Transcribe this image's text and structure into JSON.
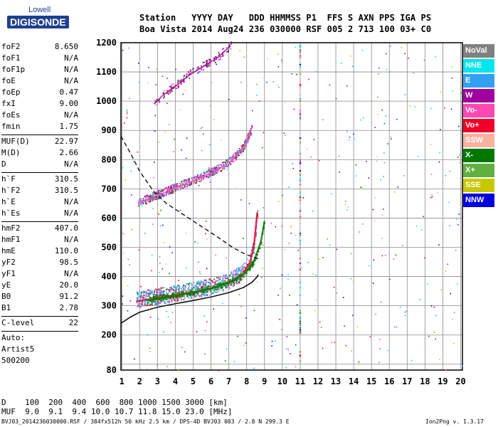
{
  "logo": {
    "line1": "Lowell",
    "line2": "DIGISONDE"
  },
  "header": {
    "line1": "Station   YYYY DAY   DDD HHMMSS P1  FFS S AXN PPS IGA PS",
    "line2": "Boa Vista 2014 Aug24 236 030000 RSF 005 2 713 100 03+ C0"
  },
  "params": {
    "group1": [
      {
        "name": "foF2",
        "value": "8.650"
      },
      {
        "name": "foF1",
        "value": "N/A"
      },
      {
        "name": "foF1p",
        "value": "N/A"
      },
      {
        "name": "foE",
        "value": "N/A"
      },
      {
        "name": "foEp",
        "value": "0.47"
      },
      {
        "name": "fxI",
        "value": "9.00"
      },
      {
        "name": "foEs",
        "value": "N/A"
      },
      {
        "name": "fmin",
        "value": "1.75"
      }
    ],
    "group2": [
      {
        "name": "MUF(D)",
        "value": "22.97"
      },
      {
        "name": "M(D)",
        "value": "2.66"
      },
      {
        "name": "D",
        "value": "N/A"
      }
    ],
    "group3": [
      {
        "name": "h`F",
        "value": "310.5"
      },
      {
        "name": "h`F2",
        "value": "310.5"
      },
      {
        "name": "h`E",
        "value": "N/A"
      },
      {
        "name": "h`Es",
        "value": "N/A"
      }
    ],
    "group4": [
      {
        "name": "hmF2",
        "value": "407.0"
      },
      {
        "name": "hmF1",
        "value": "N/A"
      },
      {
        "name": "hmE",
        "value": "110.0"
      },
      {
        "name": "yF2",
        "value": "98.5"
      },
      {
        "name": "yF1",
        "value": "N/A"
      },
      {
        "name": "yE",
        "value": "20.0"
      },
      {
        "name": "B0",
        "value": "91.2"
      },
      {
        "name": "B1",
        "value": "2.78"
      }
    ],
    "group5": [
      {
        "name": "C-level",
        "value": "22"
      }
    ],
    "auto": [
      "Auto:",
      "Artist5",
      "500200"
    ]
  },
  "legend": [
    {
      "label": "NoVal",
      "color": "#808080"
    },
    {
      "label": "NNE",
      "color": "#00e5ee"
    },
    {
      "label": "E",
      "color": "#33a1f0"
    },
    {
      "label": "W",
      "color": "#a000a0"
    },
    {
      "label": "Vo-",
      "color": "#ff48b0"
    },
    {
      "label": "Vo+",
      "color": "#f00028"
    },
    {
      "label": "SSW",
      "color": "#f8b0a0"
    },
    {
      "label": "X-",
      "color": "#007800"
    },
    {
      "label": "X+",
      "color": "#60b040"
    },
    {
      "label": "SSE",
      "color": "#c8c800"
    },
    {
      "label": "NNW",
      "color": "#0000e0"
    }
  ],
  "bottom": {
    "d_line": "D    100  200  400  600  800 1000 1500 3000 [km]",
    "muf_line": "MUF  9.0  9.1  9.4 10.0 10.7 11.8 15.0 23.0 [MHz]"
  },
  "footer": {
    "left": "BVJ03_2014236030000.RSF / 384fx512h 50 kHz 2.5 km / DPS-4D BVJ03 003 / 2.8 N 299.3 E",
    "right": "Ion2Png v. 1.3.17"
  },
  "chart_data": {
    "type": "scatter",
    "title": "",
    "xlabel": "",
    "ylabel": "",
    "xlim": [
      0.95,
      20.1
    ],
    "ylim": [
      80,
      1200
    ],
    "x_ticks": [
      1,
      2,
      3,
      4,
      5,
      6,
      7,
      8,
      9,
      10,
      11,
      12,
      13,
      14,
      15,
      16,
      17,
      18,
      19,
      20
    ],
    "y_ticks": [
      80,
      100,
      200,
      300,
      400,
      500,
      600,
      700,
      800,
      900,
      1000,
      1100,
      1200
    ],
    "y_tick_labels": [
      "80",
      "",
      "200",
      "300",
      "400",
      "500",
      "600",
      "700",
      "800",
      "900",
      "1000",
      "1100",
      "1200"
    ],
    "grid": true,
    "traces": [
      {
        "name": "O-trace F2",
        "color": "#f00028",
        "x": [
          1.8,
          2.5,
          3.5,
          4.5,
          5.5,
          6.5,
          7.2,
          7.8,
          8.2,
          8.4,
          8.5,
          8.6
        ],
        "y": [
          315,
          322,
          330,
          342,
          352,
          368,
          385,
          410,
          450,
          500,
          560,
          620
        ]
      },
      {
        "name": "X-trace F2",
        "color": "#007800",
        "x": [
          2.4,
          3.2,
          4.2,
          5.2,
          6.2,
          7.2,
          7.9,
          8.4,
          8.8,
          9.0
        ],
        "y": [
          318,
          326,
          336,
          348,
          362,
          384,
          410,
          450,
          520,
          590
        ]
      },
      {
        "name": "Second hop",
        "color": "#ff48b0",
        "x": [
          1.9,
          2.5,
          3.5,
          4.5,
          5.5,
          6.5,
          7.2,
          7.8,
          8.1,
          8.3
        ],
        "y": [
          650,
          665,
          690,
          715,
          740,
          770,
          800,
          840,
          880,
          910
        ]
      },
      {
        "name": "Third hop",
        "color": "#a000a0",
        "x": [
          2.8,
          3.3,
          4.0,
          4.8,
          5.6,
          6.4,
          7.1
        ],
        "y": [
          990,
          1020,
          1050,
          1090,
          1120,
          1150,
          1190
        ]
      }
    ],
    "profile": {
      "name": "True height profile",
      "color": "#000000",
      "x": [
        0.95,
        1.5,
        2.0,
        3.0,
        4.0,
        5.0,
        6.0,
        7.0,
        7.8,
        8.3,
        8.6,
        8.65
      ],
      "y": [
        240,
        262,
        278,
        295,
        307,
        318,
        330,
        345,
        362,
        380,
        400,
        407
      ]
    },
    "profile_dashed": {
      "name": "Topside extrapolation",
      "color": "#000000",
      "x": [
        0.95,
        1.5,
        2.0,
        2.8,
        3.5,
        4.5,
        5.5,
        6.5,
        7.2,
        7.8,
        8.2,
        8.65
      ],
      "y": [
        880,
        820,
        760,
        690,
        650,
        610,
        570,
        530,
        500,
        480,
        470,
        460
      ]
    }
  }
}
